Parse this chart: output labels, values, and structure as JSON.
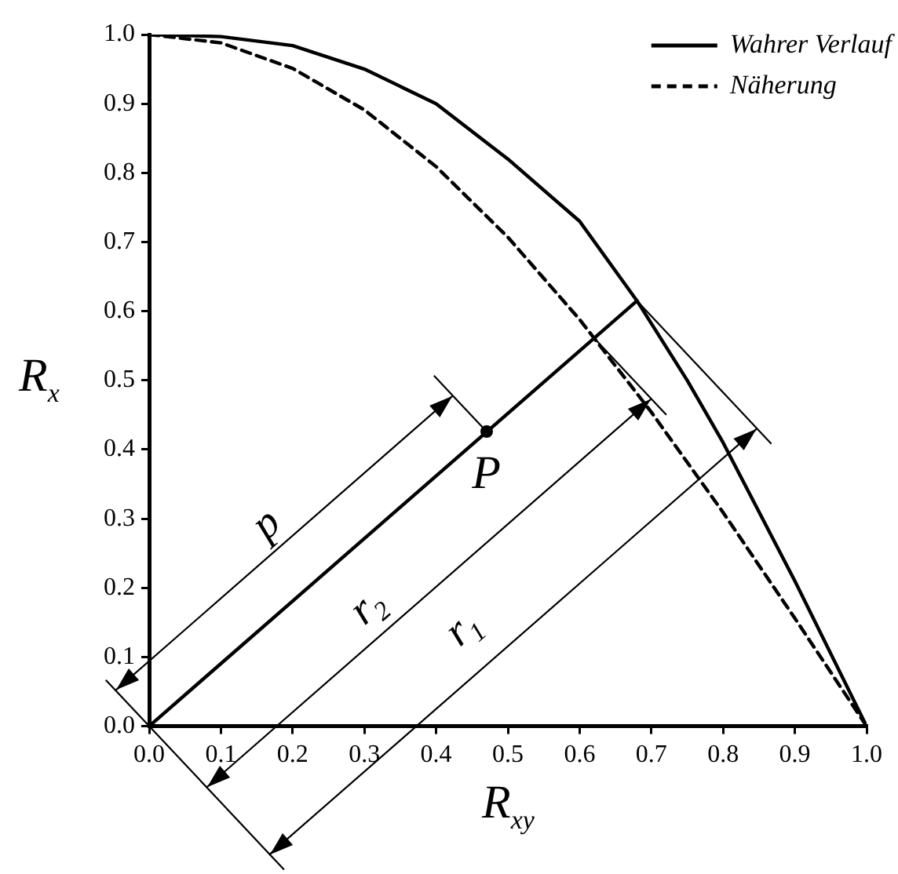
{
  "chart_data": {
    "type": "line",
    "xlabel": "R$_{xy}$",
    "ylabel": "R$_{x}$",
    "xlim": [
      0,
      1
    ],
    "ylim": [
      0,
      1
    ],
    "xticks": [
      {
        "value": 0,
        "label": "0.0"
      },
      {
        "value": 0.1,
        "label": "0.1"
      },
      {
        "value": 0.2,
        "label": "0.2"
      },
      {
        "value": 0.3,
        "label": "0.3"
      },
      {
        "value": 0.4,
        "label": "0.4"
      },
      {
        "value": 0.5,
        "label": "0.5"
      },
      {
        "value": 0.6,
        "label": "0.6"
      },
      {
        "value": 0.7,
        "label": "0.7"
      },
      {
        "value": 0.8,
        "label": "0.8"
      },
      {
        "value": 0.9,
        "label": "0.9"
      },
      {
        "value": 1,
        "label": "1.0"
      }
    ],
    "yticks": [
      {
        "value": 0,
        "label": "0.0"
      },
      {
        "value": 0.1,
        "label": "0.1"
      },
      {
        "value": 0.2,
        "label": "0.2"
      },
      {
        "value": 0.3,
        "label": "0.3"
      },
      {
        "value": 0.4,
        "label": "0.4"
      },
      {
        "value": 0.5,
        "label": "0.5"
      },
      {
        "value": 0.6,
        "label": "0.6"
      },
      {
        "value": 0.7,
        "label": "0.7"
      },
      {
        "value": 0.8,
        "label": "0.8"
      },
      {
        "value": 0.9,
        "label": "0.9"
      },
      {
        "value": 1,
        "label": "1.0"
      }
    ],
    "grid": false,
    "legend": "top right",
    "series": [
      {
        "name": "Wahrer Verlauf",
        "color": "#000000",
        "line_style": "solid",
        "x": [
          0,
          0.1,
          0.2,
          0.3,
          0.4,
          0.5,
          0.6,
          0.68,
          0.75,
          0.8,
          0.9,
          1
        ],
        "values": [
          1,
          0.997,
          0.984,
          0.95,
          0.9,
          0.82,
          0.73,
          0.615,
          0.5,
          0.41,
          0.21,
          0
        ]
      },
      {
        "name": "Näherung",
        "color": "#000000",
        "line_style": "dashed",
        "x": [
          0,
          0.1,
          0.2,
          0.3,
          0.4,
          0.5,
          0.6,
          0.7,
          0.8,
          0.9,
          1
        ],
        "values": [
          1,
          0.988,
          0.951,
          0.891,
          0.809,
          0.707,
          0.588,
          0.454,
          0.309,
          0.156,
          0
        ]
      },
      {
        "color": "#000000",
        "line_style": "solid",
        "x": [
          0,
          0.68
        ],
        "values": [
          0,
          0.615
        ]
      }
    ],
    "annotations": [
      "p",
      {
        "text": "P",
        "x": 0.47,
        "y": 0.426
      },
      "r$_{2}$",
      "r$_{1}$"
    ]
  }
}
